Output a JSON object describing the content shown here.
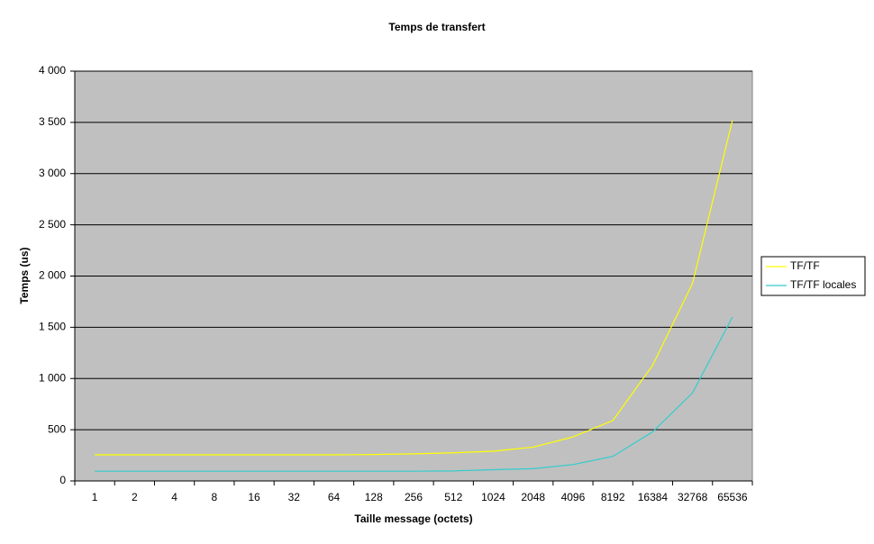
{
  "chart_data": {
    "type": "line",
    "title": "Temps de transfert",
    "x_label": "Taille message (octets)",
    "y_label": "Temps (us)",
    "categories": [
      "1",
      "2",
      "4",
      "8",
      "16",
      "32",
      "64",
      "128",
      "256",
      "512",
      "1024",
      "2048",
      "4096",
      "8192",
      "16384",
      "32768",
      "65536"
    ],
    "series": [
      {
        "name": "TF/TF",
        "color": "#ffff00",
        "values": [
          255,
          255,
          255,
          255,
          255,
          255,
          255,
          258,
          265,
          275,
          290,
          330,
          430,
          590,
          1130,
          1930,
          3520
        ]
      },
      {
        "name": "TF/TF locales",
        "color": "#33cccc",
        "values": [
          95,
          95,
          95,
          95,
          95,
          95,
          95,
          95,
          95,
          98,
          110,
          120,
          160,
          240,
          480,
          860,
          1600
        ]
      }
    ],
    "ylim": [
      0,
      4000
    ],
    "yticks": [
      0,
      500,
      {
        "value": 1000,
        "label": "1 000"
      },
      {
        "value": 1500,
        "label": "1 500"
      },
      {
        "value": 2000,
        "label": "2 000"
      },
      {
        "value": 2500,
        "label": "2 500"
      },
      {
        "value": 3000,
        "label": "3 000"
      },
      {
        "value": 3500,
        "label": "3 500"
      },
      {
        "value": 4000,
        "label": "4 000"
      }
    ],
    "grid": true,
    "background": "#c0c0c0",
    "legend": "right"
  }
}
